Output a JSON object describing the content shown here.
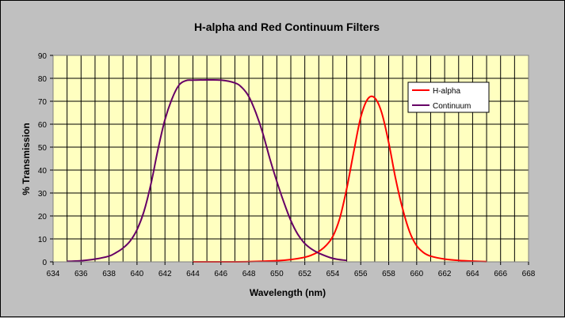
{
  "chart_data": {
    "type": "line",
    "title": "H-alpha and Red Continuum Filters",
    "xlabel": "Wavelength (nm)",
    "ylabel": "% Transmission",
    "xlim": [
      634,
      668
    ],
    "ylim": [
      0,
      90
    ],
    "x_ticks": [
      634,
      636,
      638,
      640,
      642,
      644,
      646,
      648,
      650,
      652,
      654,
      656,
      658,
      660,
      662,
      664,
      666,
      668
    ],
    "y_ticks": [
      0,
      10,
      20,
      30,
      40,
      50,
      60,
      70,
      80,
      90
    ],
    "grid": true,
    "legend_position": "top-right",
    "plot_background": "#ffffc0",
    "series": [
      {
        "name": "H-alpha",
        "color": "#ff0000",
        "x": [
          644,
          646,
          648,
          650,
          651,
          652,
          652.5,
          653,
          653.5,
          654,
          654.5,
          655,
          655.5,
          656,
          656.5,
          657,
          657.5,
          658,
          658.5,
          659,
          659.5,
          660,
          660.5,
          661,
          662,
          663,
          664,
          665
        ],
        "y": [
          0,
          0,
          0.1,
          0.5,
          1,
          2,
          3,
          4.5,
          7,
          11,
          19,
          32,
          48,
          63,
          71,
          71.5,
          65,
          52,
          36,
          23,
          13,
          7,
          4,
          2.5,
          1.2,
          0.6,
          0.3,
          0.1
        ]
      },
      {
        "name": "Continuum",
        "color": "#660066",
        "x": [
          635,
          636,
          637,
          638,
          638.5,
          639,
          639.5,
          640,
          640.5,
          641,
          641.5,
          642,
          642.5,
          643,
          643.5,
          644,
          645,
          646,
          647,
          647.5,
          648,
          648.5,
          649,
          649.5,
          650,
          650.5,
          651,
          651.5,
          652,
          652.5,
          653,
          654,
          655
        ],
        "y": [
          0.2,
          0.5,
          1.2,
          2.5,
          4,
          6,
          9,
          14,
          22,
          34,
          49,
          62,
          71,
          77,
          79,
          79.2,
          79.3,
          79.2,
          78,
          76,
          72,
          65,
          56,
          45,
          35,
          26,
          18,
          12,
          8,
          5.5,
          3.8,
          1.5,
          0.6
        ]
      }
    ]
  }
}
